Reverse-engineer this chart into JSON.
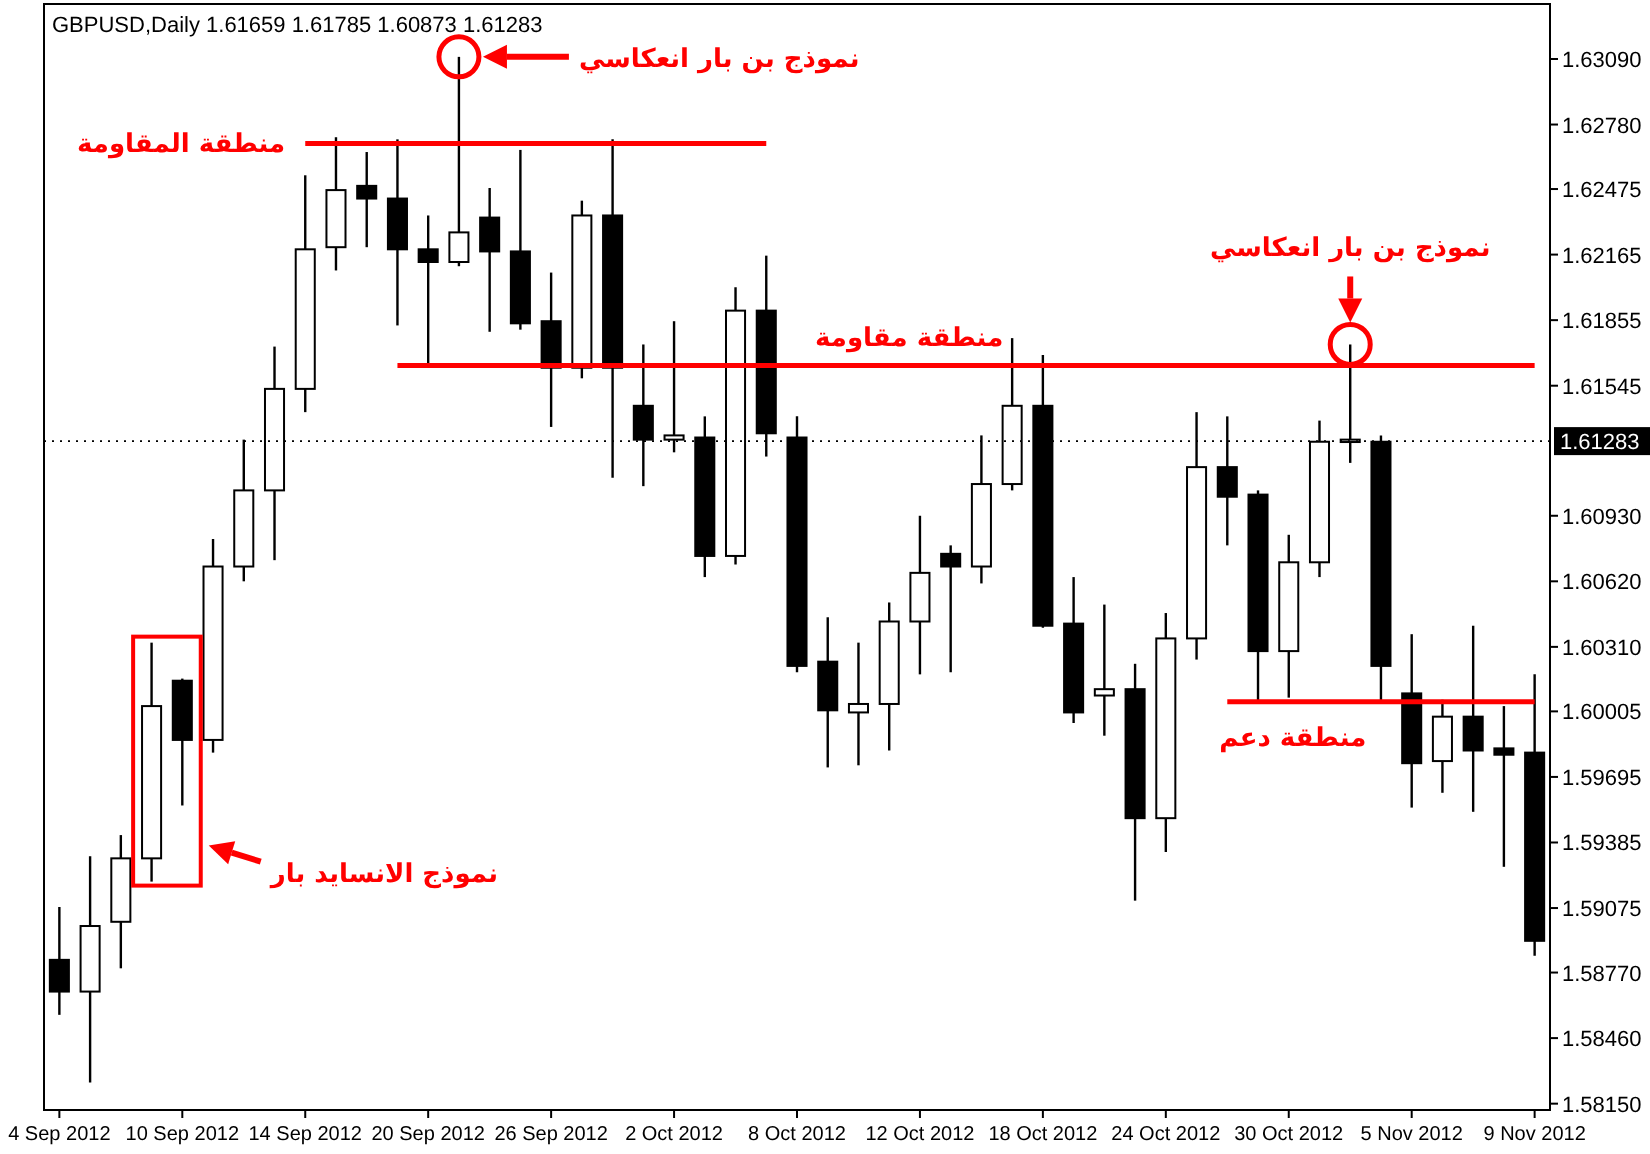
{
  "chart_data": {
    "type": "candlestick",
    "title": "GBPUSD,Daily  1.61659 1.61785 1.60873 1.61283",
    "categories": [
      "4 Sep 2012",
      null,
      null,
      null,
      "10 Sep 2012",
      null,
      null,
      null,
      "14 Sep 2012",
      null,
      null,
      null,
      "20 Sep 2012",
      null,
      null,
      null,
      "26 Sep 2012",
      null,
      null,
      null,
      "2 Oct 2012",
      null,
      null,
      null,
      "8 Oct 2012",
      null,
      null,
      null,
      "12 Oct 2012",
      null,
      null,
      null,
      "18 Oct 2012",
      null,
      null,
      null,
      "24 Oct 2012",
      null,
      null,
      null,
      "30 Oct 2012",
      null,
      null,
      null,
      "5 Nov 2012",
      null,
      null,
      null,
      "9 Nov 2012"
    ],
    "ohlc": [
      [
        1.5883,
        1.5908,
        1.5857,
        1.5868
      ],
      [
        1.5868,
        1.5932,
        1.5825,
        1.5899
      ],
      [
        1.5901,
        1.5942,
        1.5879,
        1.5931
      ],
      [
        1.5931,
        1.6033,
        1.592,
        1.6003
      ],
      [
        1.6015,
        1.6016,
        1.5956,
        1.5987
      ],
      [
        1.5987,
        1.6082,
        1.5981,
        1.6069
      ],
      [
        1.6069,
        1.6129,
        1.6062,
        1.6105
      ],
      [
        1.6105,
        1.6173,
        1.6072,
        1.6153
      ],
      [
        1.6153,
        1.6254,
        1.6142,
        1.6219
      ],
      [
        1.622,
        1.6272,
        1.6209,
        1.6247
      ],
      [
        1.6249,
        1.6265,
        1.622,
        1.6243
      ],
      [
        1.6243,
        1.6271,
        1.6183,
        1.6219
      ],
      [
        1.6219,
        1.6235,
        1.6163,
        1.6213
      ],
      [
        1.6213,
        1.631,
        1.6211,
        1.6227
      ],
      [
        1.6234,
        1.6248,
        1.618,
        1.6218
      ],
      [
        1.6218,
        1.6266,
        1.6181,
        1.6184
      ],
      [
        1.6185,
        1.6208,
        1.6135,
        1.6163
      ],
      [
        1.6163,
        1.6242,
        1.6158,
        1.6235
      ],
      [
        1.6235,
        1.6271,
        1.6111,
        1.6163
      ],
      [
        1.6145,
        1.6174,
        1.6107,
        1.6129
      ],
      [
        1.6129,
        1.6185,
        1.6123,
        1.6131
      ],
      [
        1.613,
        1.614,
        1.6064,
        1.6074
      ],
      [
        1.6074,
        1.6201,
        1.607,
        1.619
      ],
      [
        1.619,
        1.6216,
        1.6121,
        1.6132
      ],
      [
        1.613,
        1.614,
        1.6019,
        1.6022
      ],
      [
        1.6024,
        1.6045,
        1.5974,
        1.6001
      ],
      [
        1.6,
        1.6033,
        1.5975,
        1.6004
      ],
      [
        1.6004,
        1.6052,
        1.5982,
        1.6043
      ],
      [
        1.6043,
        1.6093,
        1.6018,
        1.6066
      ],
      [
        1.6075,
        1.6079,
        1.6019,
        1.6069
      ],
      [
        1.6069,
        1.6131,
        1.6061,
        1.6108
      ],
      [
        1.6108,
        1.6177,
        1.6105,
        1.6145
      ],
      [
        1.6145,
        1.6169,
        1.604,
        1.6041
      ],
      [
        1.6042,
        1.6064,
        1.5995,
        1.6
      ],
      [
        1.6008,
        1.6051,
        1.5989,
        1.6011
      ],
      [
        1.6011,
        1.6023,
        1.5911,
        1.595
      ],
      [
        1.595,
        1.6047,
        1.5934,
        1.6035
      ],
      [
        1.6035,
        1.6142,
        1.6025,
        1.6116
      ],
      [
        1.6116,
        1.614,
        1.6079,
        1.6102
      ],
      [
        1.6103,
        1.6105,
        1.6004,
        1.6029
      ],
      [
        1.6029,
        1.6084,
        1.6007,
        1.6071
      ],
      [
        1.6071,
        1.6138,
        1.6064,
        1.6128
      ],
      [
        1.6128,
        1.6174,
        1.6118,
        1.6129
      ],
      [
        1.6128,
        1.6131,
        1.6005,
        1.6022
      ],
      [
        1.6009,
        1.6037,
        1.5955,
        1.5976
      ],
      [
        1.5977,
        1.6006,
        1.5962,
        1.5998
      ],
      [
        1.5998,
        1.6041,
        1.5953,
        1.5982
      ],
      [
        1.5983,
        1.6003,
        1.5927,
        1.598
      ],
      [
        1.5981,
        1.6018,
        1.5885,
        1.5892
      ]
    ],
    "series": [
      {
        "name": "منطقة المقاومة",
        "type": "line",
        "color": "#ff0000",
        "values": [
          null,
          null,
          null,
          null,
          null,
          null,
          null,
          null,
          1.6269,
          1.6269,
          1.6269,
          1.6269,
          1.6269,
          1.6269,
          1.6269,
          1.6269,
          1.6269,
          1.6269,
          1.6269,
          1.6269,
          1.6269,
          1.6269,
          1.6269,
          1.6269,
          null,
          null,
          null,
          null,
          null,
          null,
          null,
          null,
          null,
          null,
          null,
          null,
          null,
          null,
          null,
          null,
          null,
          null,
          null,
          null,
          null,
          null,
          null,
          null,
          null
        ]
      },
      {
        "name": "منطقة مقاومة",
        "type": "line",
        "color": "#ff0000",
        "values": [
          null,
          null,
          null,
          null,
          null,
          null,
          null,
          null,
          null,
          null,
          null,
          1.6164,
          1.6164,
          1.6164,
          1.6164,
          1.6164,
          1.6164,
          1.6164,
          1.6164,
          1.6164,
          1.6164,
          1.6164,
          1.6164,
          1.6164,
          1.6164,
          1.6164,
          1.6164,
          1.6164,
          1.6164,
          1.6164,
          1.6164,
          1.6164,
          1.6164,
          1.6164,
          1.6164,
          1.6164,
          1.6164,
          1.6164,
          1.6164,
          1.6164,
          1.6164,
          1.6164,
          1.6164,
          1.6164,
          1.6164,
          1.6164,
          1.6164,
          1.6164,
          1.6164
        ]
      },
      {
        "name": "منطقة دعم",
        "type": "line",
        "color": "#ff0000",
        "values": [
          null,
          null,
          null,
          null,
          null,
          null,
          null,
          null,
          null,
          null,
          null,
          null,
          null,
          null,
          null,
          null,
          null,
          null,
          null,
          null,
          null,
          null,
          null,
          null,
          null,
          null,
          null,
          null,
          null,
          null,
          null,
          null,
          null,
          null,
          null,
          null,
          null,
          null,
          1.6005,
          1.6005,
          1.6005,
          1.6005,
          1.6005,
          1.6005,
          1.6005,
          1.6005,
          1.6005,
          1.6005,
          1.6005
        ]
      }
    ],
    "ylim": [
      1.5812,
      1.6335
    ],
    "yticks": [
      {
        "value": 1.6309,
        "label": "1.63090"
      },
      {
        "value": 1.6278,
        "label": "1.62780"
      },
      1.62475,
      1.62165,
      1.61855,
      1.61545,
      {
        "value": 1.6093,
        "label": "1.60930"
      },
      {
        "value": 1.6062,
        "label": "1.60620"
      },
      {
        "value": 1.6031,
        "label": "1.60310"
      },
      1.60005,
      1.59695,
      1.59385,
      1.59075,
      {
        "value": 1.5877,
        "label": "1.58770"
      },
      {
        "value": 1.5846,
        "label": "1.58460"
      },
      {
        "value": 1.5815,
        "label": "1.58150"
      }
    ],
    "ref_lines": [
      {
        "axis": "y",
        "value": 1.61283,
        "label": "1.61283",
        "color": "#000000"
      }
    ],
    "annotations": [
      "نموذج بن بار انعكاسي",
      "نموذج بن بار انعكاسي",
      "نموذج  الانسايد بار"
    ]
  }
}
